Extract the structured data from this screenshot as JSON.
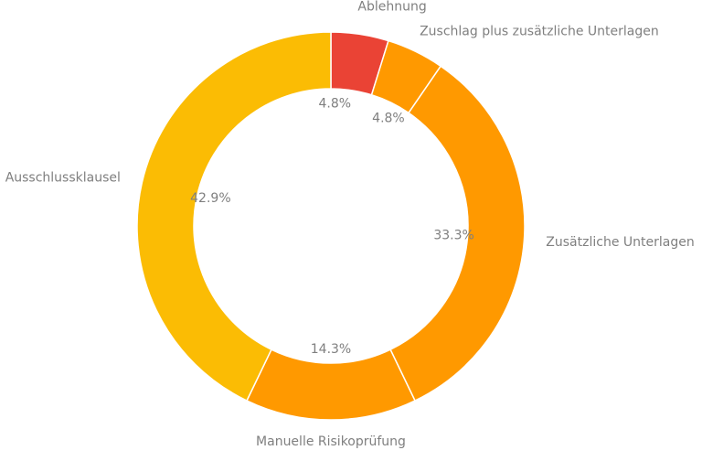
{
  "chart_data": {
    "type": "pie",
    "donut": true,
    "categories": [
      "Ablehnung",
      "Zuschlag plus zusätzliche Unterlagen",
      "Zusätzliche Unterlagen",
      "Manuelle Risikoprüfung",
      "Ausschlussklausel"
    ],
    "values": [
      4.8,
      4.8,
      33.3,
      14.3,
      42.9
    ],
    "value_labels": [
      "4.8%",
      "4.8%",
      "33.3%",
      "14.3%",
      "42.9%"
    ],
    "colors": [
      "#ea4335",
      "#ff9900",
      "#ff9900",
      "#ff9900",
      "#fbbc04"
    ],
    "title": "",
    "legend": "none"
  }
}
